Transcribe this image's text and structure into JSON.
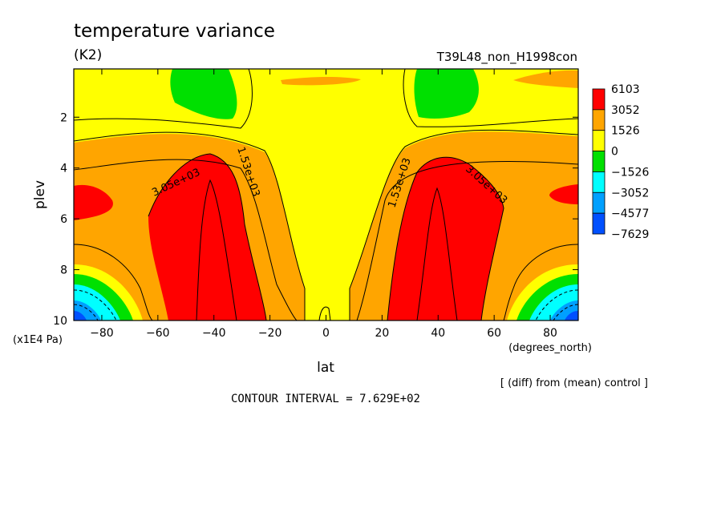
{
  "chart_data": {
    "type": "heatmap",
    "title": "temperature variance",
    "units": "(K2)",
    "run_label": "T39L48_non_H1998con",
    "xlabel": "lat",
    "x_units": "(degrees_north)",
    "ylabel": "plev",
    "y_units": "(x1E4 Pa)",
    "x_ticks": [
      -80,
      -60,
      -40,
      -20,
      0,
      20,
      40,
      60,
      80
    ],
    "y_ticks": [
      2,
      4,
      6,
      8,
      10
    ],
    "xlim": [
      -90,
      90
    ],
    "ylim": [
      10,
      0.1
    ],
    "y_reversed": true,
    "colorbar_labels": [
      "6103",
      "3052",
      "1526",
      "0",
      "−1526",
      "−3052",
      "−4577",
      "−7629"
    ],
    "colorbar_colors": [
      "#ff0000",
      "#ffa500",
      "#ffff00",
      "#00e000",
      "#00ffff",
      "#00a0ff",
      "#0050ff"
    ],
    "contour_labels": [
      "3.05e+03",
      "1.53e+03",
      "1.53e+03",
      "3.05e+03"
    ],
    "footnote": "[ (diff) from (mean) control ]",
    "contour_interval_text": "CONTOUR INTERVAL = 7.629E+02",
    "grid": false
  }
}
